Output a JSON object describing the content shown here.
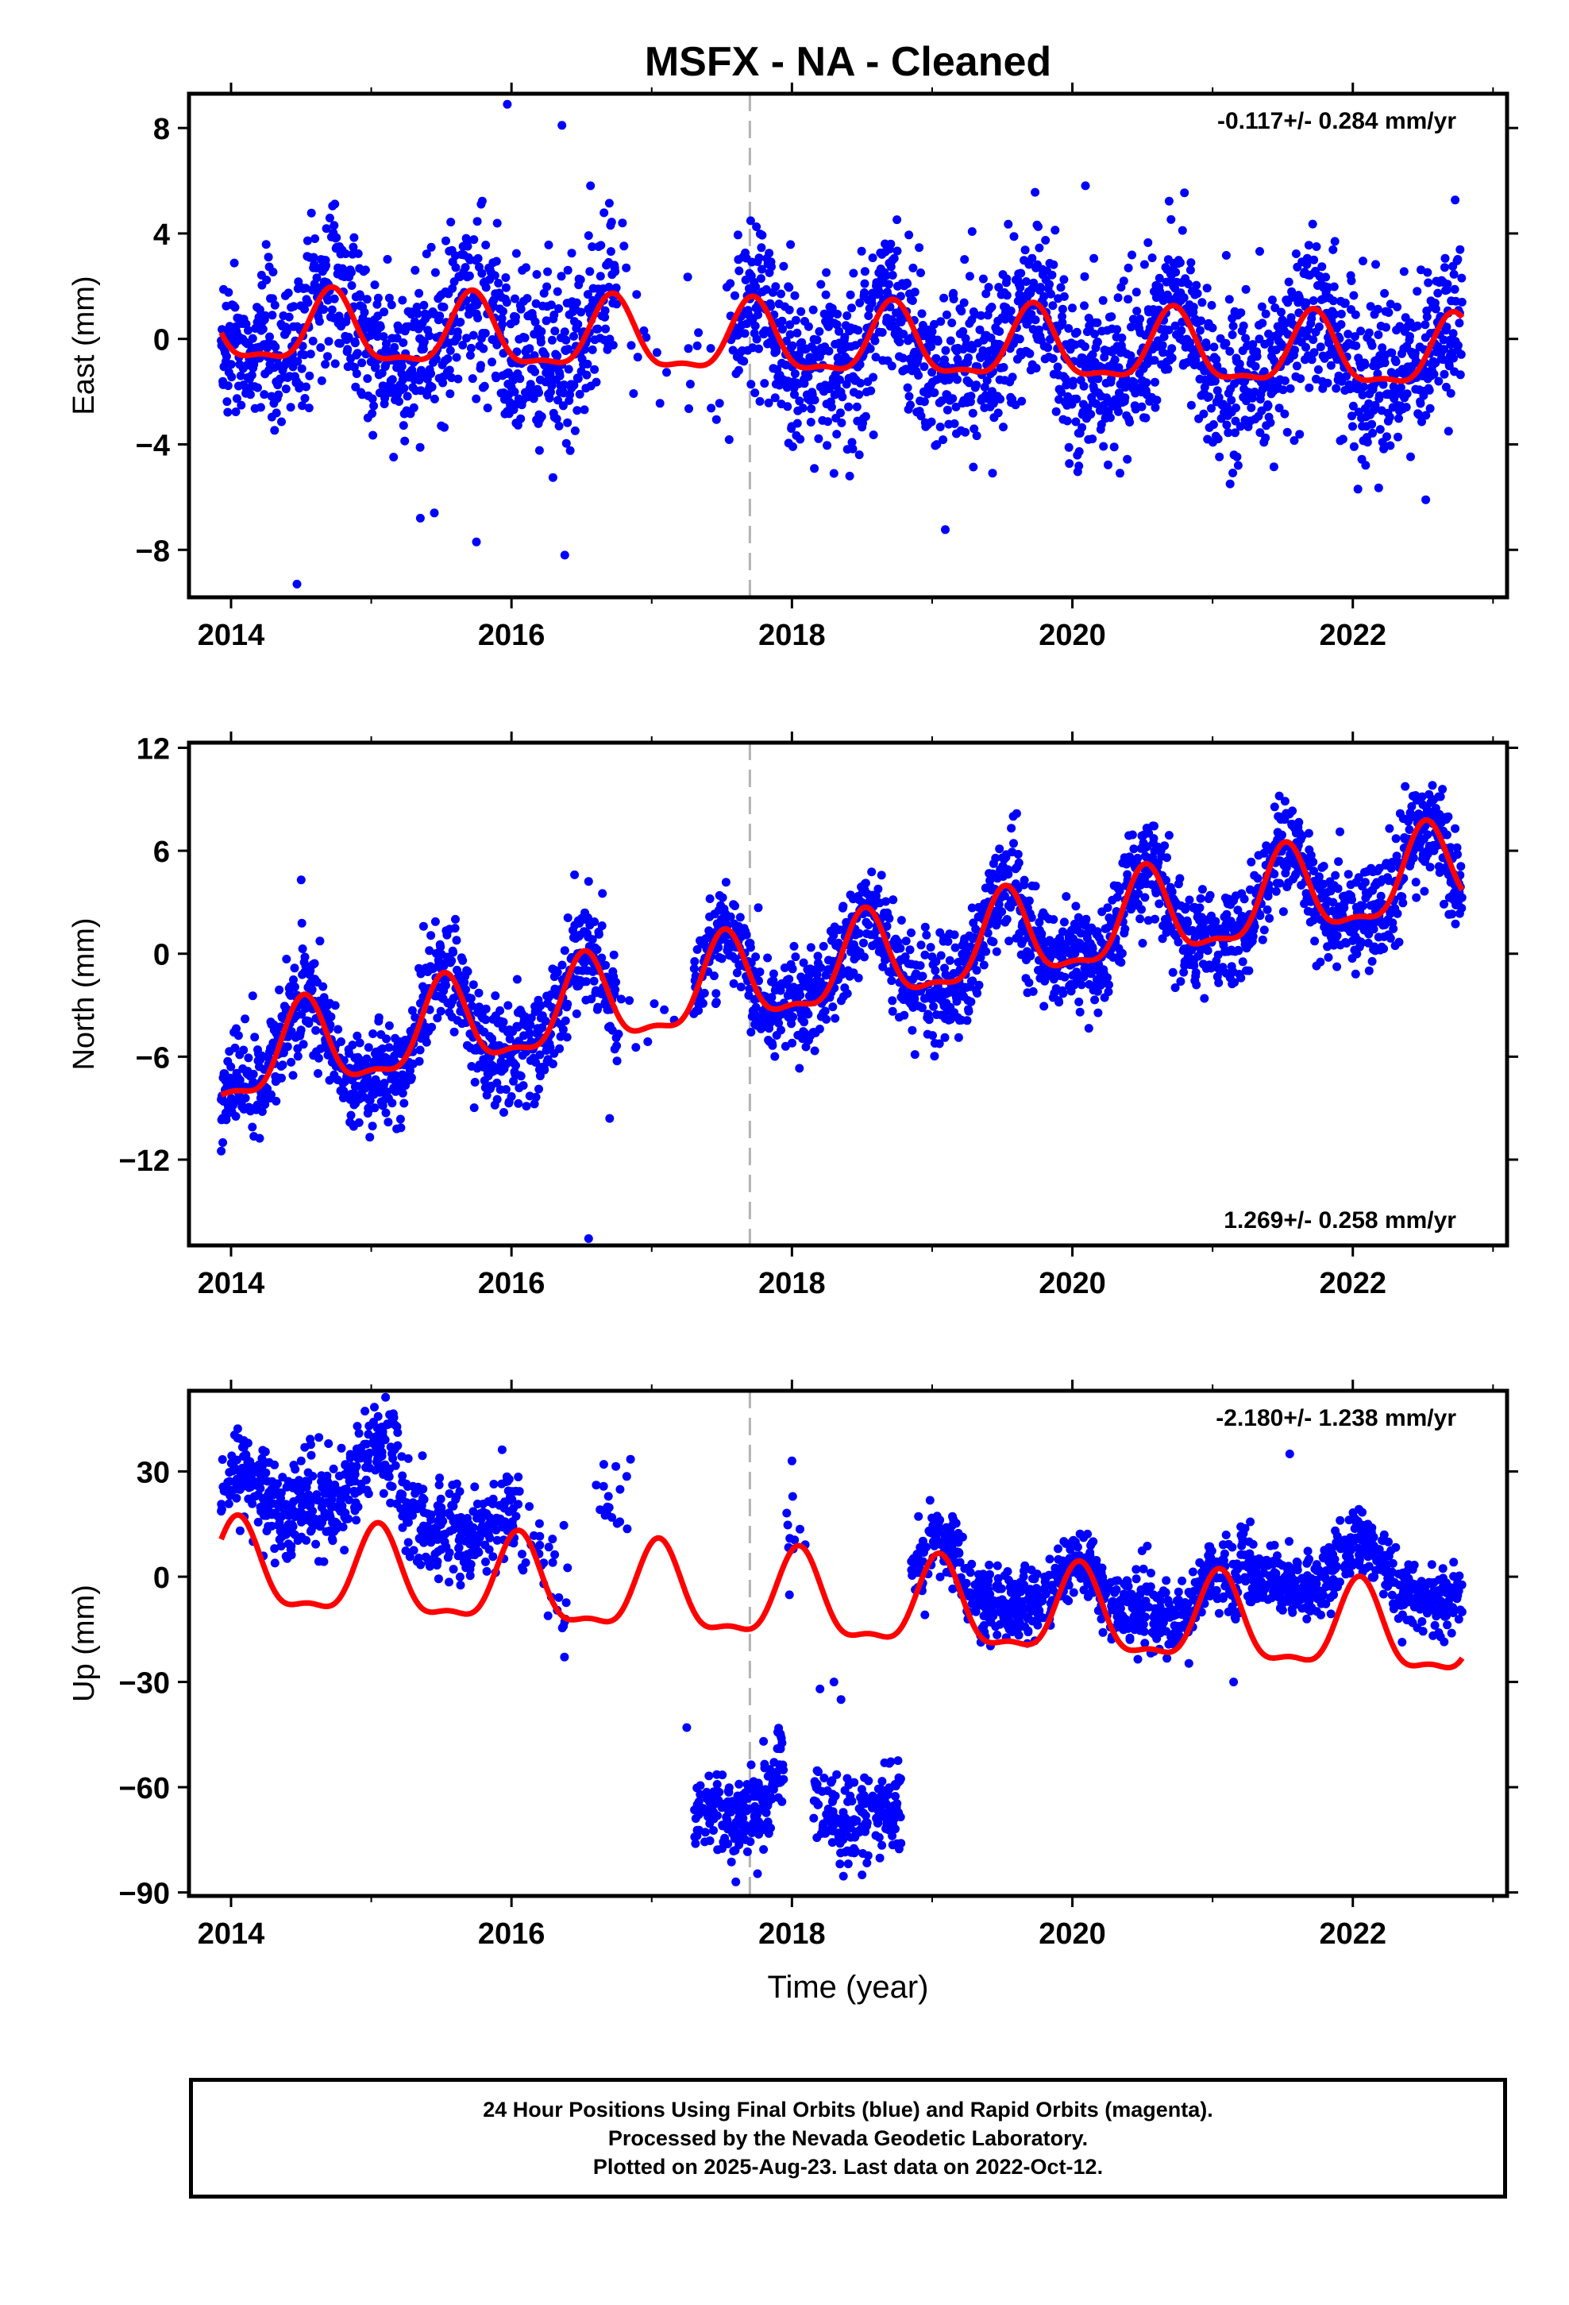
{
  "title": "MSFX  - NA - Cleaned",
  "colors": {
    "points": "#0000ff",
    "fit": "#ff0000",
    "marker": "#b4b4b4",
    "axis": "#000000"
  },
  "footer": {
    "line1": "24 Hour Positions Using Final Orbits (blue) and Rapid Orbits (magenta).",
    "line2": "Processed by the Nevada Geodetic Laboratory.",
    "line3": "Plotted on 2025-Aug-23. Last data on 2022-Oct-12."
  },
  "chart_data": [
    {
      "type": "scatter",
      "id": "east",
      "ylabel": "East (mm)",
      "xlabel": "",
      "xlim": [
        2013.7,
        2023.1
      ],
      "ylim": [
        -9.8,
        9.3
      ],
      "xticks": [
        2014,
        2016,
        2018,
        2020,
        2022
      ],
      "yticks": [
        -8,
        -4,
        0,
        4,
        8
      ],
      "xtick_labels": [
        "2014",
        "2016",
        "2018",
        "2020",
        "2022"
      ],
      "ytick_labels": [
        "−8",
        "−4",
        "0",
        "4",
        "8"
      ],
      "rate_text": "-0.117+/- 0.284 mm/yr",
      "rate_position": "top-right",
      "event_line_x": 2017.7,
      "data_range": [
        2013.93,
        2022.78
      ],
      "gaps": [
        [
          2016.75,
          2017.55
        ]
      ],
      "trend": {
        "intercept_2014": 0.3,
        "rate": -0.117
      },
      "seasonal": {
        "amp": 1.3,
        "phase_peak": 0.72
      },
      "noise_sd": 1.6,
      "outliers": [
        [
          2014.47,
          -9.3
        ],
        [
          2015.97,
          8.9
        ],
        [
          2016.36,
          8.1
        ],
        [
          2016.38,
          -8.2
        ],
        [
          2015.75,
          -7.7
        ],
        [
          2015.35,
          -6.8
        ],
        [
          2022.52,
          -6.1
        ],
        [
          2018.3,
          -5.1
        ],
        [
          2015.45,
          -6.6
        ]
      ]
    },
    {
      "type": "scatter",
      "id": "north",
      "ylabel": "North (mm)",
      "xlabel": "",
      "xlim": [
        2013.7,
        2023.1
      ],
      "ylim": [
        -17.0,
        12.3
      ],
      "xticks": [
        2014,
        2016,
        2018,
        2020,
        2022
      ],
      "yticks": [
        -12,
        -6,
        0,
        6,
        12
      ],
      "xtick_labels": [
        "2014",
        "2016",
        "2018",
        "2020",
        "2022"
      ],
      "ytick_labels": [
        "−12",
        "−6",
        "0",
        "6",
        "12"
      ],
      "rate_text": "1.269+/- 0.258 mm/yr",
      "rate_position": "bottom-right",
      "event_line_x": 2017.7,
      "data_range": [
        2013.93,
        2022.78
      ],
      "gaps": [
        [
          2016.75,
          2017.3
        ]
      ],
      "trend": {
        "intercept_2014": -6.4,
        "rate": 1.269
      },
      "seasonal": {
        "amp": 2.5,
        "phase_peak": 0.52
      },
      "noise_sd": 1.5,
      "outliers": [
        [
          2016.55,
          -16.6
        ],
        [
          2013.93,
          -11.5
        ],
        [
          2014.5,
          4.3
        ],
        [
          2016.45,
          4.6
        ],
        [
          2016.7,
          -9.6
        ]
      ]
    },
    {
      "type": "scatter",
      "id": "up",
      "ylabel": "Up (mm)",
      "xlabel": "Time (year)",
      "xlim": [
        2013.7,
        2023.1
      ],
      "ylim": [
        -91,
        53
      ],
      "xticks": [
        2014,
        2016,
        2018,
        2020,
        2022
      ],
      "yticks": [
        -90,
        -60,
        -30,
        0,
        30
      ],
      "xtick_labels": [
        "2014",
        "2016",
        "2018",
        "2020",
        "2022"
      ],
      "ytick_labels": [
        "−90",
        "−60",
        "−30",
        "0",
        "30"
      ],
      "rate_text": "-2.180+/- 1.238 mm/yr",
      "rate_position": "top-right",
      "event_line_x": 2017.7,
      "data_range": [
        2013.93,
        2022.78
      ],
      "segments": [
        {
          "x": [
            2013.93,
            2015.2
          ],
          "trend_start": 20,
          "trend_end": 28,
          "noise_sd": 7,
          "density": 330
        },
        {
          "x": [
            2015.2,
            2016.05
          ],
          "trend_start": 20,
          "trend_end": 12,
          "noise_sd": 7,
          "density": 300
        },
        {
          "x": [
            2016.05,
            2016.4
          ],
          "trend_start": 4,
          "trend_end": 0,
          "noise_sd": 9,
          "density": 90
        },
        {
          "x": [
            2016.6,
            2016.85
          ],
          "trend_start": 24,
          "trend_end": 28,
          "noise_sd": 6,
          "density": 70
        },
        {
          "x": [
            2017.3,
            2017.95
          ],
          "trend_start": -64,
          "trend_end": -60,
          "noise_sd": 6,
          "density": 320
        },
        {
          "x": [
            2017.95,
            2018.1
          ],
          "trend_start": 6,
          "trend_end": 4,
          "noise_sd": 6,
          "density": 70
        },
        {
          "x": [
            2018.15,
            2018.78
          ],
          "trend_start": -68,
          "trend_end": -62,
          "noise_sd": 6,
          "density": 300
        },
        {
          "x": [
            2018.85,
            2020.3
          ],
          "trend_start": 1,
          "trend_end": -8,
          "noise_sd": 5,
          "density": 320
        },
        {
          "x": [
            2020.3,
            2021.2
          ],
          "trend_start": -4,
          "trend_end": -10,
          "noise_sd": 5,
          "density": 320
        },
        {
          "x": [
            2021.2,
            2022.78
          ],
          "trend_start": 4,
          "trend_end": -2,
          "noise_sd": 4.5,
          "density": 320
        }
      ],
      "fit_trend": {
        "intercept_2014": 1.5,
        "rate": -2.18
      },
      "seasonal": {
        "amp": 12,
        "phase_peak": 0.05
      },
      "outliers": [
        [
          2021.55,
          35
        ],
        [
          2017.25,
          -43
        ],
        [
          2018.2,
          -32
        ],
        [
          2018.3,
          -30
        ],
        [
          2021.15,
          -30
        ],
        [
          2017.6,
          -87
        ],
        [
          2018.5,
          -85
        ],
        [
          2018.35,
          -35
        ],
        [
          2014.5,
          33
        ],
        [
          2018.0,
          33
        ]
      ]
    }
  ]
}
